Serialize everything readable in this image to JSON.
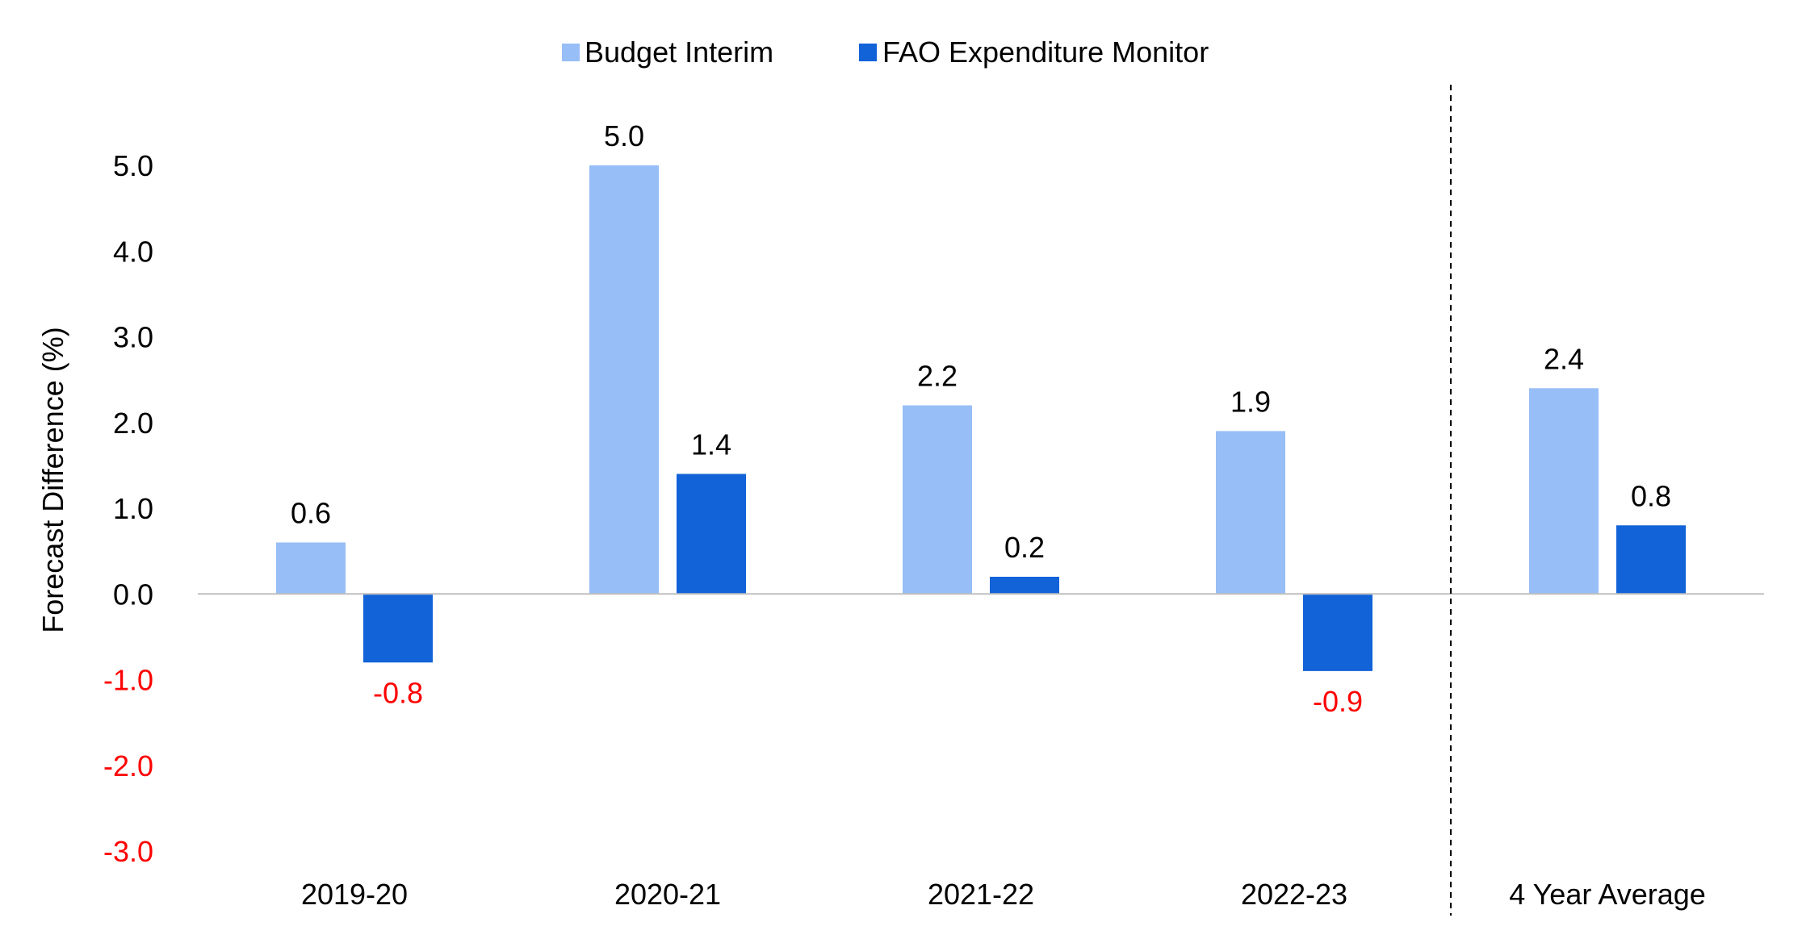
{
  "chart_data": {
    "type": "bar",
    "title": "",
    "xlabel": "",
    "ylabel": "Forecast Difference (%)",
    "ylim": [
      -3.0,
      5.0
    ],
    "yticks": [
      "5.0",
      "4.0",
      "3.0",
      "2.0",
      "1.0",
      "0.0",
      "-1.0",
      "-2.0",
      "-3.0"
    ],
    "categories": [
      "2019-20",
      "2020-21",
      "2021-22",
      "2022-23",
      "4 Year Average"
    ],
    "series": [
      {
        "name": "Budget Interim",
        "color": "#97BEF6",
        "values": [
          0.6,
          5.0,
          2.2,
          1.9,
          2.4
        ],
        "labels": [
          "0.6",
          "5.0",
          "2.2",
          "1.9",
          "2.4"
        ]
      },
      {
        "name": "FAO Expenditure Monitor",
        "color": "#1262D8",
        "values": [
          -0.8,
          1.4,
          0.2,
          -0.9,
          0.8
        ],
        "labels": [
          "-0.8",
          "1.4",
          "0.2",
          "-0.9",
          "0.8"
        ]
      }
    ],
    "legend": "top-center",
    "grid": false,
    "separator_before_category": "4 Year Average",
    "negative_color": "#FF0000",
    "axis_color": "#BFBFBF",
    "text_color": "#000000"
  }
}
